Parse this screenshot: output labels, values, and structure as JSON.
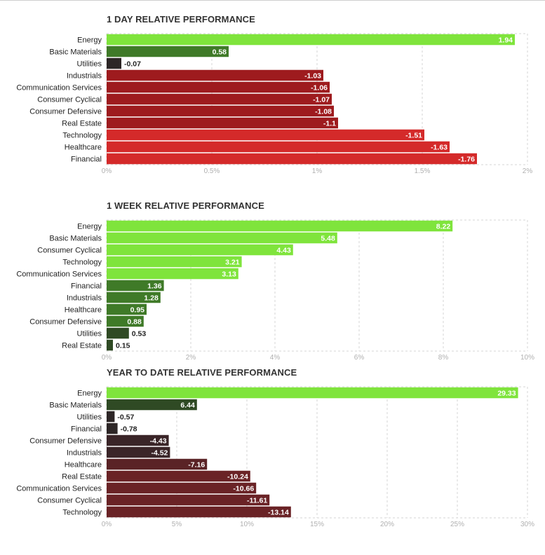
{
  "colors": {
    "positive_strong": "#7fe43c",
    "positive_mid": "#3f7a28",
    "positive_weak": "#2f4a24",
    "neutral_dark": "#2d2626",
    "negative_mid": "#9e1b1e",
    "negative_strong": "#d42a2a",
    "negative_ytd": "#6a2326",
    "ytd_dark": "#3a2528",
    "grid": "#d6d6d6",
    "tick": "#b0b0b0"
  },
  "chart_data": [
    {
      "type": "bar",
      "title": "1 DAY RELATIVE PERFORMANCE",
      "orientation": "horizontal",
      "categories": [
        "Energy",
        "Basic Materials",
        "Utilities",
        "Industrials",
        "Communication Services",
        "Consumer Cyclical",
        "Consumer Defensive",
        "Real Estate",
        "Technology",
        "Healthcare",
        "Financial"
      ],
      "values": [
        1.94,
        0.58,
        -0.07,
        -1.03,
        -1.06,
        -1.07,
        -1.08,
        -1.1,
        -1.51,
        -1.63,
        -1.76
      ],
      "value_labels": [
        "1.94",
        "0.58",
        "-0.07",
        "-1.03",
        "-1.06",
        "-1.07",
        "-1.08",
        "-1.1",
        "-1.51",
        "-1.63",
        "-1.76"
      ],
      "bar_colors": [
        "#7fe43c",
        "#3f7a28",
        "#2d2626",
        "#9e1b1e",
        "#9e1b1e",
        "#9e1b1e",
        "#9e1b1e",
        "#9e1b1e",
        "#d42a2a",
        "#d42a2a",
        "#d42a2a"
      ],
      "xlim": [
        0,
        2
      ],
      "tick_labels": [
        "0%",
        "0.5%",
        "1%",
        "1.5%",
        "2%"
      ],
      "bar_length": "absolute value",
      "grid": true
    },
    {
      "type": "bar",
      "title": "1 WEEK RELATIVE PERFORMANCE",
      "orientation": "horizontal",
      "categories": [
        "Energy",
        "Basic Materials",
        "Consumer Cyclical",
        "Technology",
        "Communication Services",
        "Financial",
        "Industrials",
        "Healthcare",
        "Consumer Defensive",
        "Utilities",
        "Real Estate"
      ],
      "values": [
        8.22,
        5.48,
        4.43,
        3.21,
        3.13,
        1.36,
        1.28,
        0.95,
        0.88,
        0.53,
        0.15
      ],
      "value_labels": [
        "8.22",
        "5.48",
        "4.43",
        "3.21",
        "3.13",
        "1.36",
        "1.28",
        "0.95",
        "0.88",
        "0.53",
        "0.15"
      ],
      "bar_colors": [
        "#7fe43c",
        "#7fe43c",
        "#7fe43c",
        "#7fe43c",
        "#7fe43c",
        "#3f7a28",
        "#3f7a28",
        "#3f7a28",
        "#3f7a28",
        "#2f4a24",
        "#2f4a24"
      ],
      "xlim": [
        0,
        10
      ],
      "tick_labels": [
        "0%",
        "2%",
        "4%",
        "6%",
        "8%",
        "10%"
      ],
      "bar_length": "absolute value",
      "grid": true
    },
    {
      "type": "bar",
      "title": "YEAR TO DATE RELATIVE PERFORMANCE",
      "orientation": "horizontal",
      "categories": [
        "Energy",
        "Basic Materials",
        "Utilities",
        "Financial",
        "Consumer Defensive",
        "Industrials",
        "Healthcare",
        "Real Estate",
        "Communication Services",
        "Consumer Cyclical",
        "Technology"
      ],
      "values": [
        29.33,
        6.44,
        -0.57,
        -0.78,
        -4.43,
        -4.52,
        -7.16,
        -10.24,
        -10.66,
        -11.61,
        -13.14
      ],
      "value_labels": [
        "29.33",
        "6.44",
        "-0.57",
        "-0.78",
        "-4.43",
        "-4.52",
        "-7.16",
        "-10.24",
        "-10.66",
        "-11.61",
        "-13.14"
      ],
      "bar_colors": [
        "#7fe43c",
        "#2f4a24",
        "#2d2626",
        "#2d2626",
        "#3a2528",
        "#3a2528",
        "#5a2326",
        "#6a2326",
        "#6a2326",
        "#6a2326",
        "#6a2326"
      ],
      "xlim": [
        0,
        30
      ],
      "tick_labels": [
        "0%",
        "5%",
        "10%",
        "15%",
        "20%",
        "25%",
        "30%"
      ],
      "bar_length": "absolute value",
      "grid": true
    }
  ]
}
